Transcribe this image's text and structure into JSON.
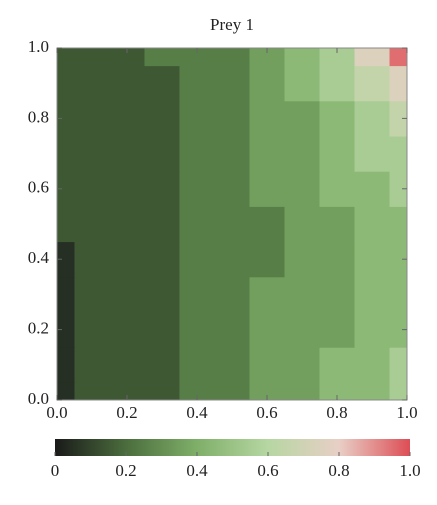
{
  "chart_data": {
    "type": "contour",
    "title": "Prey 1",
    "x": [
      0,
      0.1,
      0.2,
      0.3,
      0.4,
      0.5,
      0.6,
      0.7,
      0.8,
      0.9,
      1.0
    ],
    "y": [
      0,
      0.1,
      0.2,
      0.3,
      0.4,
      0.5,
      0.6,
      0.7,
      0.8,
      0.9,
      1.0
    ],
    "z": [
      [
        0.08,
        0.13,
        0.16,
        0.19,
        0.23,
        0.27,
        0.31,
        0.35,
        0.4,
        0.46,
        0.52
      ],
      [
        0.08,
        0.13,
        0.16,
        0.19,
        0.23,
        0.27,
        0.31,
        0.35,
        0.4,
        0.45,
        0.5
      ],
      [
        0.08,
        0.13,
        0.16,
        0.19,
        0.23,
        0.27,
        0.31,
        0.35,
        0.39,
        0.43,
        0.46
      ],
      [
        0.09,
        0.13,
        0.16,
        0.19,
        0.23,
        0.27,
        0.31,
        0.35,
        0.38,
        0.41,
        0.43
      ],
      [
        0.09,
        0.13,
        0.16,
        0.19,
        0.22,
        0.26,
        0.3,
        0.34,
        0.38,
        0.41,
        0.43
      ],
      [
        0.11,
        0.13,
        0.16,
        0.19,
        0.22,
        0.26,
        0.3,
        0.34,
        0.38,
        0.42,
        0.45
      ],
      [
        0.12,
        0.13,
        0.16,
        0.19,
        0.22,
        0.26,
        0.31,
        0.35,
        0.4,
        0.46,
        0.5
      ],
      [
        0.12,
        0.13,
        0.16,
        0.18,
        0.22,
        0.27,
        0.32,
        0.37,
        0.44,
        0.52,
        0.58
      ],
      [
        0.12,
        0.13,
        0.15,
        0.18,
        0.23,
        0.28,
        0.33,
        0.39,
        0.47,
        0.58,
        0.66
      ],
      [
        0.13,
        0.14,
        0.15,
        0.19,
        0.24,
        0.28,
        0.34,
        0.41,
        0.52,
        0.65,
        0.78
      ],
      [
        0.13,
        0.14,
        0.16,
        0.2,
        0.25,
        0.29,
        0.35,
        0.43,
        0.56,
        0.74,
        0.95
      ]
    ],
    "xlim": [
      0,
      1.0
    ],
    "ylim": [
      0,
      1.0
    ],
    "xticks": [
      {
        "value": 0,
        "label": "0.0"
      },
      0.2,
      0.4,
      0.6,
      0.8,
      {
        "value": 1,
        "label": "1.0"
      }
    ],
    "yticks": [
      {
        "value": 0,
        "label": "0.0"
      },
      0.2,
      0.4,
      0.6,
      0.8,
      {
        "value": 1,
        "label": "1.0"
      }
    ],
    "clim": [
      0,
      1.0
    ],
    "cticks": [
      0,
      0.2,
      0.4,
      0.6,
      0.8,
      {
        "value": 1,
        "label": "1.0"
      }
    ],
    "level_step": 0.1,
    "colors": [
      "#1a1a1a",
      "#4b6d3d",
      "#7faf69",
      "#b6d6a2",
      "#e8cfc6",
      "#dd4d55"
    ]
  }
}
